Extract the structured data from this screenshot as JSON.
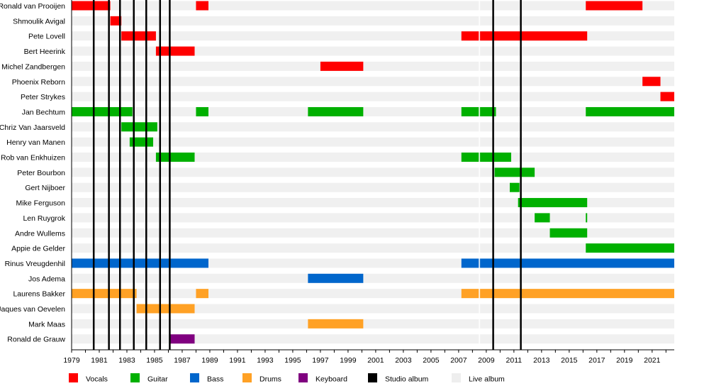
{
  "chart_data": {
    "type": "timeline",
    "title": "",
    "xlabel": "",
    "ylabel": "",
    "xlim": [
      1979,
      2022.6
    ],
    "x_ticks": [
      1979,
      1981,
      1983,
      1985,
      1987,
      1989,
      1991,
      1993,
      1995,
      1997,
      1999,
      2001,
      2003,
      2005,
      2007,
      2009,
      2011,
      2013,
      2015,
      2017,
      2019,
      2021
    ],
    "minor_tick_step": 1,
    "legend_position": "bottom",
    "roles": [
      {
        "key": "vocals",
        "label": "Vocals",
        "color": "#ff0000"
      },
      {
        "key": "guitar",
        "label": "Guitar",
        "color": "#00b000"
      },
      {
        "key": "bass",
        "label": "Bass",
        "color": "#0066cc"
      },
      {
        "key": "drums",
        "label": "Drums",
        "color": "#ffa125"
      },
      {
        "key": "keyboard",
        "label": "Keyboard",
        "color": "#800080"
      },
      {
        "key": "studio",
        "label": "Studio album",
        "color": "#000000"
      },
      {
        "key": "live",
        "label": "Live album",
        "color": "#eeeeee"
      }
    ],
    "members": [
      {
        "name": "Ronald van Prooijen",
        "role": "vocals",
        "periods": [
          [
            1979,
            1981.8
          ],
          [
            1988,
            1988.9
          ],
          [
            2016.2,
            2020.3
          ]
        ]
      },
      {
        "name": "Shmoulik Avigal",
        "role": "vocals",
        "periods": [
          [
            1981.8,
            1982.6
          ]
        ]
      },
      {
        "name": "Pete Lovell",
        "role": "vocals",
        "periods": [
          [
            1982.6,
            1985.1
          ],
          [
            2007.2,
            2016.3
          ]
        ]
      },
      {
        "name": "Bert Heerink",
        "role": "vocals",
        "periods": [
          [
            1985.1,
            1987.9
          ]
        ]
      },
      {
        "name": "Michel Zandbergen",
        "role": "vocals",
        "periods": [
          [
            1997,
            2000.1
          ]
        ]
      },
      {
        "name": "Phoenix Reborn",
        "role": "vocals",
        "periods": [
          [
            2020.3,
            2021.6
          ]
        ]
      },
      {
        "name": "Peter Strykes",
        "role": "vocals",
        "periods": [
          [
            2021.6,
            2022.6
          ]
        ]
      },
      {
        "name": "Jan Bechtum",
        "role": "guitar",
        "periods": [
          [
            1979,
            1983.4
          ],
          [
            1988,
            1988.9
          ],
          [
            1996.1,
            2000.1
          ],
          [
            2007.2,
            2009.7
          ],
          [
            2016.2,
            2022.6
          ]
        ]
      },
      {
        "name": "Chriz Van Jaarsveld",
        "role": "guitar",
        "periods": [
          [
            1982.6,
            1985.2
          ]
        ]
      },
      {
        "name": "Henry van Manen",
        "role": "guitar",
        "periods": [
          [
            1983.2,
            1984.9
          ]
        ]
      },
      {
        "name": "Rob van Enkhuizen",
        "role": "guitar",
        "periods": [
          [
            1985.1,
            1987.9
          ],
          [
            2007.2,
            2010.8
          ]
        ]
      },
      {
        "name": "Peter Bourbon",
        "role": "guitar",
        "periods": [
          [
            2009.6,
            2012.5
          ]
        ]
      },
      {
        "name": "Gert Nijboer",
        "role": "guitar",
        "periods": [
          [
            2010.7,
            2011.4
          ]
        ]
      },
      {
        "name": "Mike Ferguson",
        "role": "guitar",
        "periods": [
          [
            2011.3,
            2016.3
          ]
        ]
      },
      {
        "name": "Len Ruygrok",
        "role": "guitar",
        "periods": [
          [
            2012.5,
            2013.6
          ],
          [
            2016.2,
            2016.3
          ]
        ]
      },
      {
        "name": "Andre Wullems",
        "role": "guitar",
        "periods": [
          [
            2013.6,
            2016.3
          ]
        ]
      },
      {
        "name": "Appie de Gelder",
        "role": "guitar",
        "periods": [
          [
            2016.2,
            2022.6
          ]
        ]
      },
      {
        "name": "Rinus Vreugdenhil",
        "role": "bass",
        "periods": [
          [
            1979,
            1988.9
          ],
          [
            2007.2,
            2022.6
          ]
        ]
      },
      {
        "name": "Jos Adema",
        "role": "bass",
        "periods": [
          [
            1996.1,
            2000.1
          ]
        ]
      },
      {
        "name": "Laurens Bakker",
        "role": "drums",
        "periods": [
          [
            1979,
            1983.7
          ],
          [
            1988,
            1988.9
          ],
          [
            2007.2,
            2022.6
          ]
        ]
      },
      {
        "name": "Jaques van Oevelen",
        "role": "drums",
        "periods": [
          [
            1983.7,
            1987.9
          ]
        ]
      },
      {
        "name": "Mark Maas",
        "role": "drums",
        "periods": [
          [
            1996.1,
            2000.1
          ]
        ]
      },
      {
        "name": "Ronald de Grauw",
        "role": "keyboard",
        "periods": [
          [
            1986.1,
            1987.9
          ]
        ]
      }
    ],
    "studio_albums": [
      1980.6,
      1981.7,
      1982.5,
      1983.5,
      1984.4,
      1985.4,
      1986.1,
      2009.5,
      2011.5
    ],
    "live_albums": [
      2008.5
    ]
  }
}
